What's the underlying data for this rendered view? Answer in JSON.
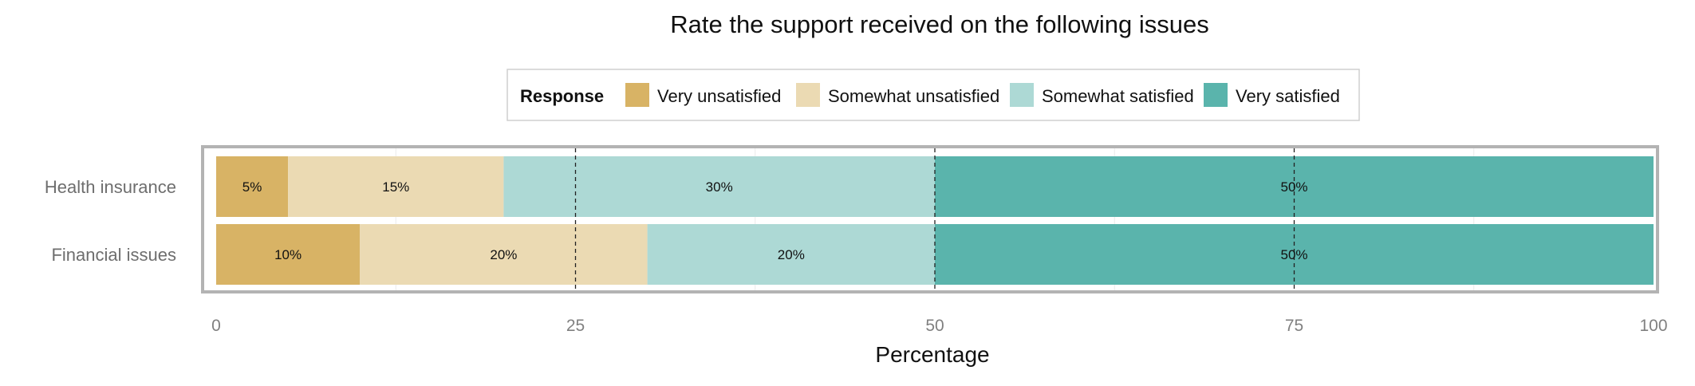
{
  "chart_data": {
    "type": "bar",
    "orientation": "horizontal",
    "stacked": true,
    "title": "Rate the support received on the following issues",
    "xlabel": "Percentage",
    "ylabel": "",
    "xlim": [
      0,
      100
    ],
    "xticks": [
      0,
      25,
      50,
      75,
      100
    ],
    "reference_lines": [
      25,
      50,
      75
    ],
    "categories": [
      "Health insurance",
      "Financial issues"
    ],
    "legend": {
      "title": "Response",
      "position": "top"
    },
    "series": [
      {
        "name": "Very unsatisfied",
        "color": "#D8B365",
        "values": [
          5,
          10
        ],
        "labels": [
          "5%",
          "10%"
        ]
      },
      {
        "name": "Somewhat unsatisfied",
        "color": "#EBDAB3",
        "values": [
          15,
          20
        ],
        "labels": [
          "15%",
          "20%"
        ]
      },
      {
        "name": "Somewhat satisfied",
        "color": "#ADD9D5",
        "values": [
          30,
          20
        ],
        "labels": [
          "30%",
          "20%"
        ]
      },
      {
        "name": "Very satisfied",
        "color": "#5AB4AC",
        "values": [
          50,
          50
        ],
        "labels": [
          "50%",
          "50%"
        ]
      }
    ]
  }
}
